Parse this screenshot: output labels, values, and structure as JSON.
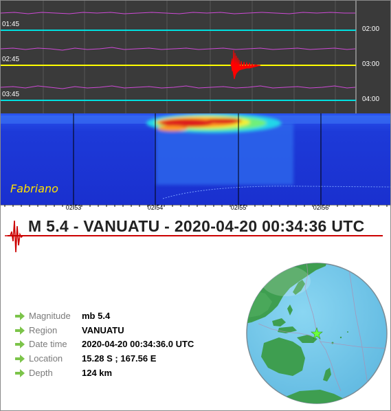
{
  "helicorder": {
    "left_times": [
      "01:45",
      "02:45",
      "03:45"
    ],
    "right_times": [
      "02:00",
      "03:00",
      "04:00"
    ]
  },
  "spectrogram": {
    "station": "Fabriano"
  },
  "time_axis": {
    "labels": [
      "02:53",
      "02:54",
      "02:55",
      "02:56"
    ]
  },
  "event": {
    "title": "M 5.4 - VANUATU - 2020-04-20 00:34:36 UTC",
    "fields": [
      {
        "label": "Magnitude",
        "value": "mb 5.4"
      },
      {
        "label": "Region",
        "value": "VANUATU"
      },
      {
        "label": "Date time",
        "value": "2020-04-20 00:34:36.0 UTC"
      },
      {
        "label": "Location",
        "value": "15.28 S ; 167.56 E"
      },
      {
        "label": "Depth",
        "value": "124 km"
      }
    ]
  },
  "colors": {
    "trace_magenta": "#d04ad8",
    "trace_yellow": "#ffff00",
    "cyan_line": "#00e0e0",
    "event_red": "#ff0000",
    "arrow_green": "#7cc44a",
    "ocean": "#72c6e8",
    "land": "#3e9e50",
    "epicenter_star": "#6cff3c"
  }
}
